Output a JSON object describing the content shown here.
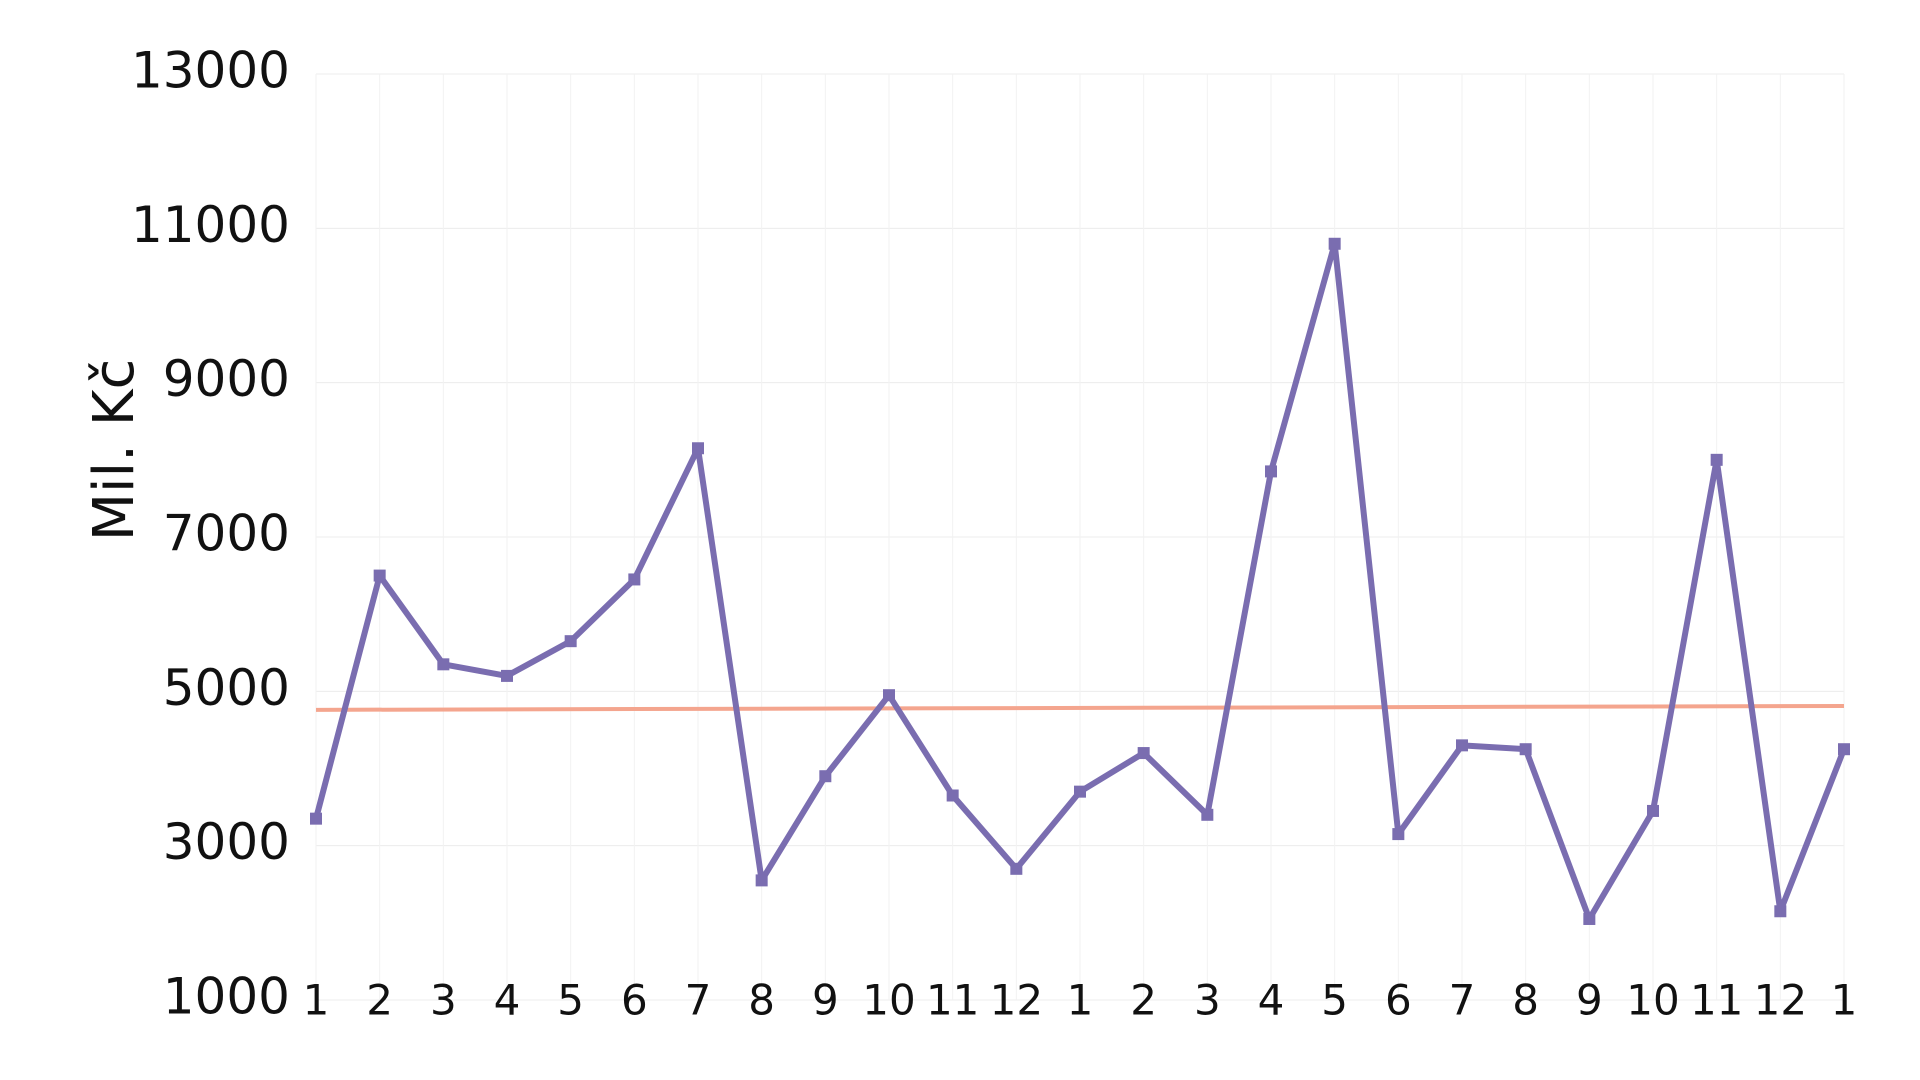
{
  "chart_data": {
    "type": "line",
    "y_label": "Mil. Kč",
    "categories": [
      "1",
      "2",
      "3",
      "4",
      "5",
      "6",
      "7",
      "8",
      "9",
      "10",
      "11",
      "12",
      "1",
      "2",
      "3",
      "4",
      "5",
      "6",
      "7",
      "8",
      "9",
      "10",
      "11",
      "12",
      "1"
    ],
    "series": [
      {
        "color": "#7a6db0",
        "values": [
          3350,
          6500,
          5350,
          5200,
          5650,
          6450,
          8150,
          2550,
          3900,
          4950,
          3650,
          2700,
          3700,
          4200,
          3400,
          7850,
          10800,
          3150,
          4300,
          4250,
          2050,
          3450,
          8000,
          2150,
          4250
        ]
      }
    ],
    "trendline": {
      "color": "#f4a58e",
      "start": 4760,
      "end": 4810
    },
    "ylim": [
      1000,
      13000
    ],
    "yticks": [
      1000,
      3000,
      5000,
      7000,
      9000,
      11000,
      13000
    ],
    "grid": true
  }
}
